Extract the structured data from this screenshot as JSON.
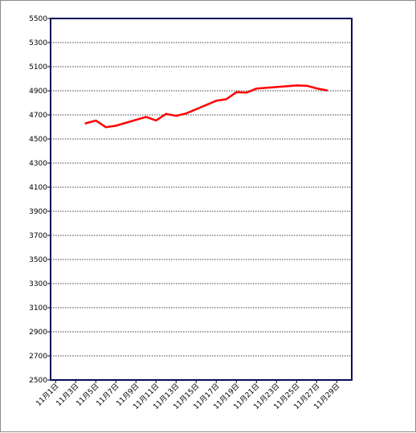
{
  "chart_data": {
    "type": "line",
    "title": "",
    "xlabel": "",
    "ylabel": "",
    "ylim": [
      2500,
      5500
    ],
    "y_ticks": [
      2500,
      2700,
      2900,
      3100,
      3300,
      3500,
      3700,
      3900,
      4100,
      4300,
      4500,
      4700,
      4900,
      5100,
      5300,
      5500
    ],
    "y_tick_labels": [
      "2500",
      "2700",
      "2900",
      "3100",
      "3300",
      "3500",
      "3700",
      "3900",
      "4100",
      "4300",
      "4500",
      "4700",
      "4900",
      "5100",
      "5300",
      "5500"
    ],
    "x_ticks": [
      1,
      3,
      5,
      7,
      9,
      11,
      13,
      15,
      17,
      19,
      21,
      23,
      25,
      27,
      29
    ],
    "x_tick_labels": [
      "11月1日",
      "11月3日",
      "11月5日",
      "11月7日",
      "11月9日",
      "11月11日",
      "11月13日",
      "11月15日",
      "11月17日",
      "11月19日",
      "11月21日",
      "11月23日",
      "11月25日",
      "11月27日",
      "11月29日"
    ],
    "xlim": [
      0.5,
      30.5
    ],
    "grid": true,
    "legend": "none",
    "line_color": "#ff0000",
    "series": [
      {
        "x": [
          4,
          5,
          6,
          7,
          10,
          11,
          12,
          13,
          14,
          17,
          18,
          19,
          20,
          21,
          24,
          25,
          26,
          27,
          28
        ],
        "y": [
          4630,
          4653,
          4598,
          4610,
          4683,
          4654,
          4708,
          4692,
          4712,
          4817,
          4830,
          4888,
          4885,
          4918,
          4937,
          4944,
          4942,
          4920,
          4903
        ]
      }
    ]
  }
}
